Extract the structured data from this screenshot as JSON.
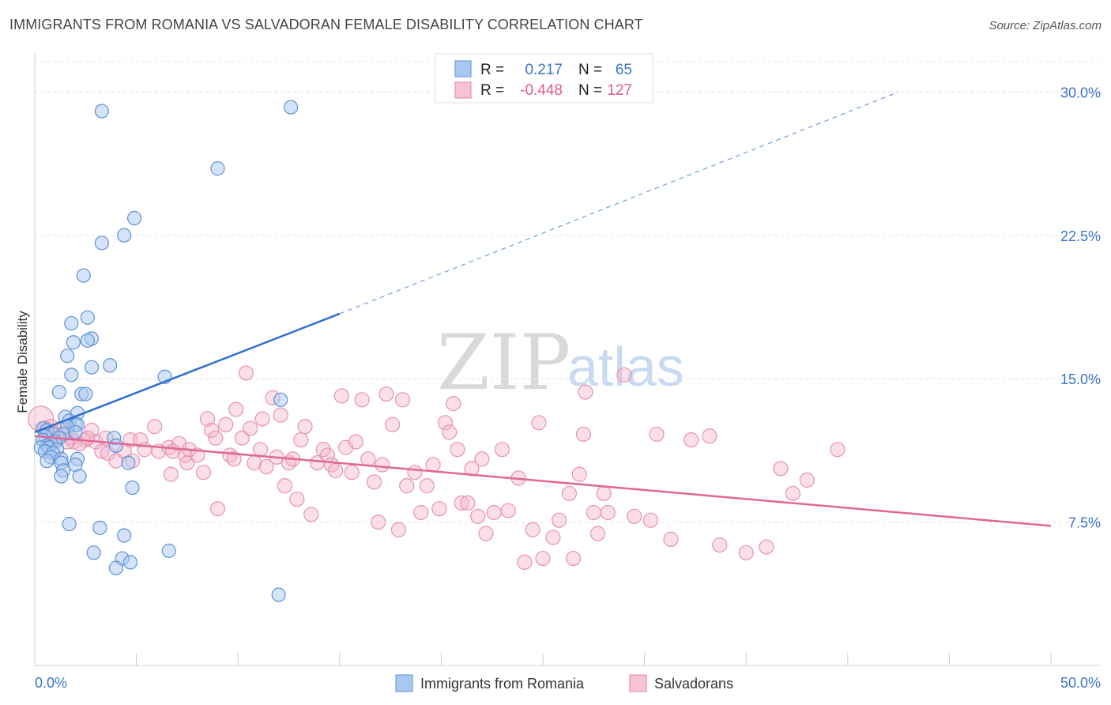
{
  "title": "IMMIGRANTS FROM ROMANIA VS SALVADORAN FEMALE DISABILITY CORRELATION CHART",
  "source": "Source: ZipAtlas.com",
  "watermark": {
    "zip": "ZIP",
    "atlas": "atlas"
  },
  "colors": {
    "blue": "#3a74c8",
    "blue_fill": "#a9c8f0",
    "pink": "#e05a8c",
    "pink_fill": "#f4b5cb"
  },
  "legend": {
    "r_label": "R =",
    "n_label": "N =",
    "rows": [
      {
        "r": "0.217",
        "n": "65"
      },
      {
        "r": "-0.448",
        "n": "127"
      }
    ]
  },
  "chart_data": {
    "type": "scatter",
    "xlabel": "",
    "ylabel": "Female Disability",
    "xlim": [
      0,
      50
    ],
    "ylim": [
      0,
      32
    ],
    "x_tick_labels": [
      "0.0%",
      "50.0%"
    ],
    "y_ticks": [
      {
        "value": 7.5,
        "label": "7.5%"
      },
      {
        "value": 15.0,
        "label": "15.0%"
      },
      {
        "value": 22.5,
        "label": "22.5%"
      },
      {
        "value": 30.0,
        "label": "30.0%"
      }
    ],
    "grid": true,
    "legend_position": "top-center",
    "series": [
      {
        "name": "Immigrants from Romania",
        "color": "#3a74c8",
        "trend": {
          "solid": [
            [
              0,
              12.2
            ],
            [
              15,
              18.4
            ]
          ],
          "dashed": [
            [
              15,
              18.4
            ],
            [
              42.5,
              30
            ]
          ]
        },
        "points": [
          [
            3.3,
            29.0
          ],
          [
            12.6,
            29.2
          ],
          [
            9.0,
            26.0
          ],
          [
            4.9,
            23.4
          ],
          [
            4.4,
            22.5
          ],
          [
            3.3,
            22.1
          ],
          [
            2.4,
            20.4
          ],
          [
            2.6,
            18.2
          ],
          [
            1.8,
            17.9
          ],
          [
            2.8,
            17.1
          ],
          [
            2.6,
            17.0
          ],
          [
            1.9,
            16.9
          ],
          [
            1.6,
            16.2
          ],
          [
            3.7,
            15.7
          ],
          [
            2.8,
            15.6
          ],
          [
            1.8,
            15.2
          ],
          [
            6.4,
            15.1
          ],
          [
            1.2,
            14.3
          ],
          [
            2.3,
            14.2
          ],
          [
            2.5,
            14.2
          ],
          [
            12.1,
            13.9
          ],
          [
            2.1,
            13.2
          ],
          [
            1.5,
            13.0
          ],
          [
            1.7,
            12.8
          ],
          [
            2.0,
            12.6
          ],
          [
            2.1,
            12.6
          ],
          [
            1.6,
            12.5
          ],
          [
            0.4,
            12.4
          ],
          [
            0.6,
            12.3
          ],
          [
            1.4,
            12.1
          ],
          [
            0.9,
            12.1
          ],
          [
            0.5,
            12.0
          ],
          [
            3.9,
            11.9
          ],
          [
            1.2,
            11.9
          ],
          [
            0.4,
            11.8
          ],
          [
            1.0,
            11.7
          ],
          [
            0.8,
            11.6
          ],
          [
            4.0,
            11.5
          ],
          [
            0.6,
            11.5
          ],
          [
            0.3,
            11.4
          ],
          [
            0.7,
            11.4
          ],
          [
            1.1,
            11.3
          ],
          [
            0.5,
            11.2
          ],
          [
            0.9,
            11.1
          ],
          [
            0.8,
            10.9
          ],
          [
            1.3,
            10.8
          ],
          [
            2.1,
            10.8
          ],
          [
            0.6,
            10.7
          ],
          [
            1.3,
            10.6
          ],
          [
            4.6,
            10.6
          ],
          [
            2.0,
            10.5
          ],
          [
            1.4,
            10.2
          ],
          [
            1.3,
            9.9
          ],
          [
            2.2,
            9.9
          ],
          [
            4.8,
            9.3
          ],
          [
            1.7,
            7.4
          ],
          [
            3.2,
            7.2
          ],
          [
            4.4,
            6.8
          ],
          [
            2.9,
            5.9
          ],
          [
            6.6,
            6.0
          ],
          [
            4.3,
            5.6
          ],
          [
            4.7,
            5.4
          ],
          [
            4.0,
            5.1
          ],
          [
            12.0,
            3.7
          ],
          [
            2.0,
            12.2
          ]
        ]
      },
      {
        "name": "Salvadorans",
        "color": "#e05a8c",
        "trend": {
          "solid": [
            [
              0,
              12.0
            ],
            [
              50,
              7.3
            ]
          ]
        },
        "points": [
          [
            0.3,
            12.9
          ],
          [
            0.8,
            12.5
          ],
          [
            1.3,
            12.4
          ],
          [
            1.5,
            12.1
          ],
          [
            1.1,
            11.9
          ],
          [
            1.9,
            11.7
          ],
          [
            2.5,
            11.8
          ],
          [
            2.8,
            12.3
          ],
          [
            2.2,
            11.6
          ],
          [
            3.0,
            11.7
          ],
          [
            3.3,
            11.2
          ],
          [
            3.6,
            11.1
          ],
          [
            4.0,
            10.7
          ],
          [
            4.4,
            11.2
          ],
          [
            4.7,
            11.8
          ],
          [
            4.8,
            10.7
          ],
          [
            5.2,
            11.8
          ],
          [
            5.4,
            11.3
          ],
          [
            5.9,
            12.5
          ],
          [
            6.1,
            11.2
          ],
          [
            6.6,
            11.4
          ],
          [
            6.7,
            10.0
          ],
          [
            6.8,
            11.2
          ],
          [
            7.1,
            11.6
          ],
          [
            7.4,
            11.0
          ],
          [
            7.5,
            10.6
          ],
          [
            7.6,
            11.3
          ],
          [
            8.0,
            11.0
          ],
          [
            8.3,
            10.1
          ],
          [
            8.5,
            12.9
          ],
          [
            8.7,
            12.3
          ],
          [
            8.9,
            11.9
          ],
          [
            9.0,
            8.2
          ],
          [
            9.4,
            12.6
          ],
          [
            9.6,
            11.0
          ],
          [
            9.8,
            10.8
          ],
          [
            9.9,
            13.4
          ],
          [
            10.2,
            11.9
          ],
          [
            10.4,
            15.3
          ],
          [
            10.6,
            12.4
          ],
          [
            10.8,
            10.6
          ],
          [
            11.1,
            11.3
          ],
          [
            11.2,
            12.9
          ],
          [
            11.4,
            10.4
          ],
          [
            11.7,
            14.0
          ],
          [
            11.9,
            10.9
          ],
          [
            12.1,
            13.1
          ],
          [
            12.3,
            9.4
          ],
          [
            12.5,
            10.6
          ],
          [
            12.7,
            10.8
          ],
          [
            12.9,
            8.7
          ],
          [
            13.1,
            11.8
          ],
          [
            13.3,
            12.5
          ],
          [
            13.6,
            7.9
          ],
          [
            13.9,
            10.6
          ],
          [
            14.2,
            11.3
          ],
          [
            14.4,
            11.0
          ],
          [
            14.6,
            10.5
          ],
          [
            14.8,
            10.2
          ],
          [
            15.1,
            14.1
          ],
          [
            15.3,
            11.4
          ],
          [
            15.6,
            10.1
          ],
          [
            15.8,
            11.7
          ],
          [
            16.1,
            13.9
          ],
          [
            16.4,
            10.8
          ],
          [
            16.7,
            9.6
          ],
          [
            16.9,
            7.5
          ],
          [
            17.1,
            10.5
          ],
          [
            17.3,
            14.2
          ],
          [
            17.6,
            12.6
          ],
          [
            17.9,
            7.1
          ],
          [
            18.1,
            13.9
          ],
          [
            18.3,
            9.4
          ],
          [
            18.7,
            10.1
          ],
          [
            19.0,
            8.0
          ],
          [
            19.3,
            9.4
          ],
          [
            19.6,
            10.5
          ],
          [
            19.9,
            8.2
          ],
          [
            20.2,
            12.7
          ],
          [
            20.4,
            12.2
          ],
          [
            20.6,
            13.7
          ],
          [
            20.8,
            11.3
          ],
          [
            21.0,
            8.5
          ],
          [
            21.3,
            8.5
          ],
          [
            21.5,
            10.3
          ],
          [
            21.8,
            7.8
          ],
          [
            22.0,
            10.8
          ],
          [
            22.2,
            6.9
          ],
          [
            22.6,
            8.0
          ],
          [
            23.0,
            11.3
          ],
          [
            23.3,
            8.1
          ],
          [
            23.8,
            9.8
          ],
          [
            24.1,
            5.4
          ],
          [
            24.5,
            7.1
          ],
          [
            24.8,
            12.7
          ],
          [
            25.0,
            5.6
          ],
          [
            25.5,
            6.7
          ],
          [
            25.8,
            7.6
          ],
          [
            26.3,
            9.0
          ],
          [
            26.5,
            5.6
          ],
          [
            26.8,
            10.0
          ],
          [
            27.0,
            12.1
          ],
          [
            27.1,
            14.3
          ],
          [
            27.5,
            8.0
          ],
          [
            27.7,
            6.9
          ],
          [
            28.0,
            9.0
          ],
          [
            28.2,
            8.0
          ],
          [
            29.0,
            15.2
          ],
          [
            29.5,
            7.8
          ],
          [
            30.3,
            7.6
          ],
          [
            30.6,
            12.1
          ],
          [
            31.3,
            6.6
          ],
          [
            32.3,
            11.8
          ],
          [
            33.2,
            12.0
          ],
          [
            33.7,
            6.3
          ],
          [
            35.0,
            5.9
          ],
          [
            36.0,
            6.2
          ],
          [
            36.7,
            10.3
          ],
          [
            37.3,
            9.0
          ],
          [
            38.0,
            9.7
          ],
          [
            0.5,
            12.4
          ],
          [
            1.8,
            11.9
          ],
          [
            3.5,
            11.9
          ],
          [
            39.5,
            11.3
          ],
          [
            2.6,
            11.9
          ],
          [
            0.9,
            12.2
          ],
          [
            1.6,
            11.7
          ]
        ]
      }
    ]
  },
  "bottom_legend": [
    "Immigrants from Romania",
    "Salvadorans"
  ]
}
